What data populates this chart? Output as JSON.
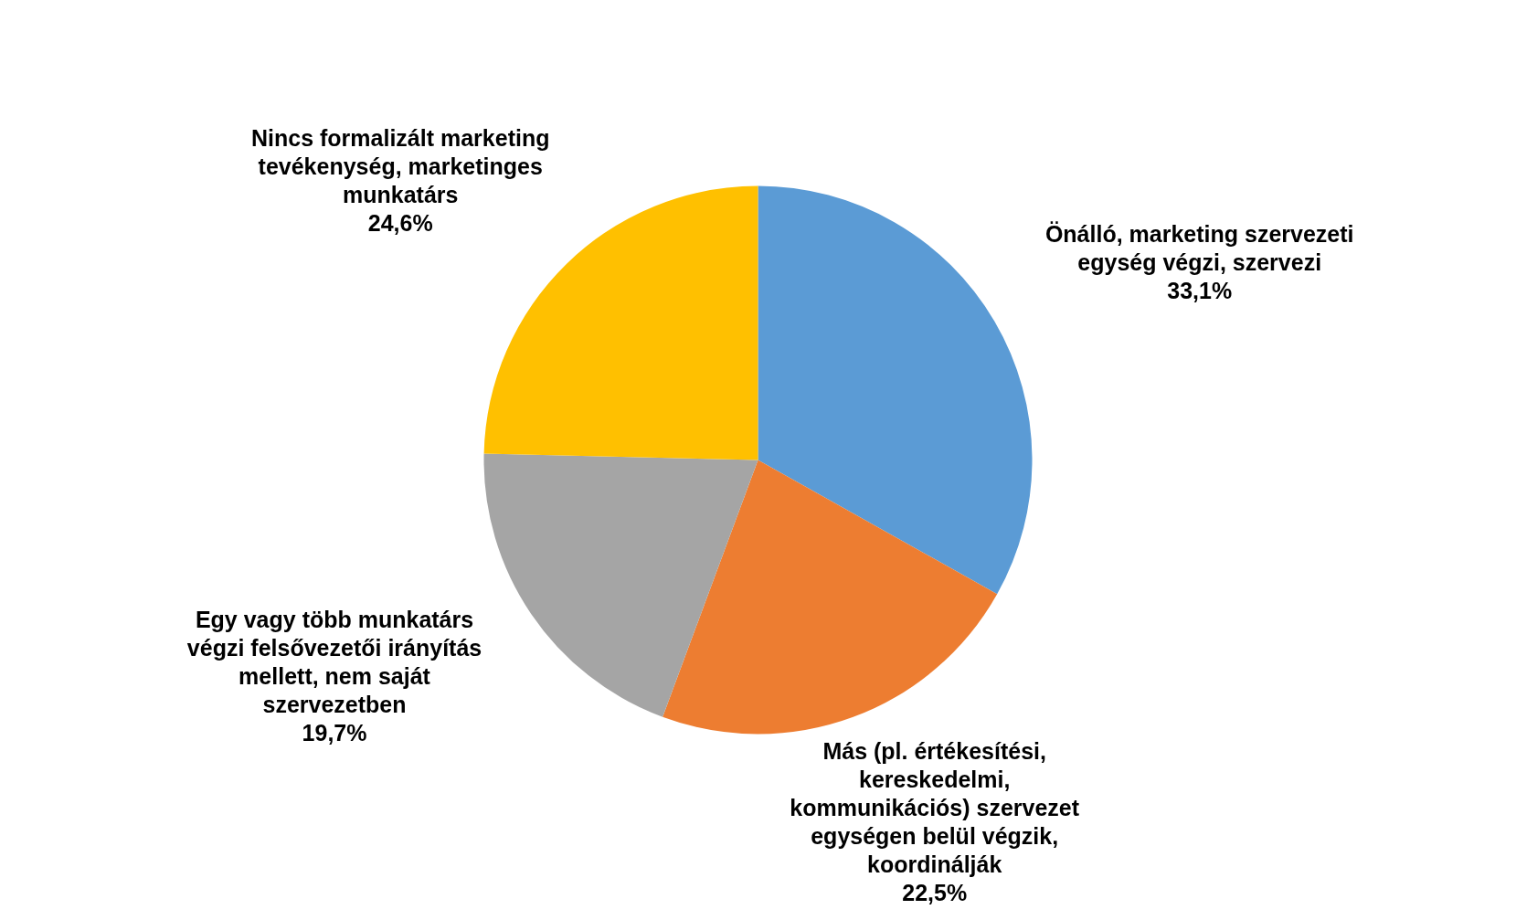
{
  "chart_data": {
    "type": "pie",
    "categories": [
      "Önálló, marketing szervezeti egység végzi, szervezi",
      "Más (pl. értékesítési, kereskedelmi, kommunikációs) szervezet egységen belül végzik, koordinálják",
      "Egy vagy több munkatárs végzi felsővezetői irányítás mellett, nem saját szervezetben",
      "Nincs formalizált marketing tevékenység, marketinges munkatárs"
    ],
    "values": [
      33.1,
      22.5,
      19.7,
      24.6
    ],
    "colors": [
      "#5b9bd5",
      "#ed7d31",
      "#a5a5a5",
      "#ffc000"
    ],
    "value_labels": [
      "33,1%",
      "22,5%",
      "19,7%",
      "24,6%"
    ]
  }
}
